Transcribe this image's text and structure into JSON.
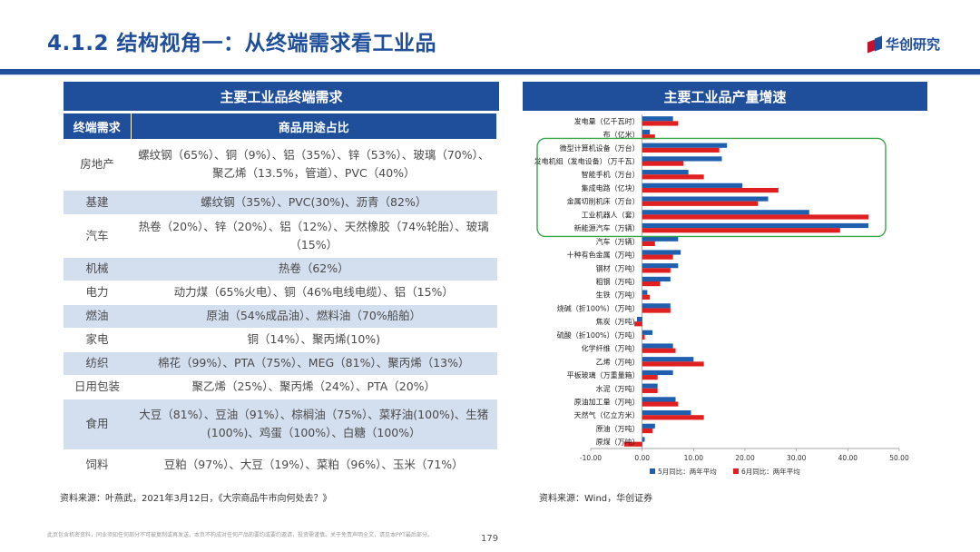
{
  "header": {
    "title": "4.1.2 结构视角一：从终端需求看工业品",
    "logo_text": "华创研究"
  },
  "table": {
    "title": "主要工业品终端需求",
    "col1": "终端需求",
    "col2": "商品用途占比",
    "rows": [
      {
        "k": "房地产",
        "v": "螺纹钢（65%）、铜（9%）、铝（35%）、锌（53%）、玻璃（70%）、聚乙烯（13.5%，管道）、PVC（40%）"
      },
      {
        "k": "基建",
        "v": "螺纹钢（35%）、PVC(30%)、沥青（82%）"
      },
      {
        "k": "汽车",
        "v": "热卷（20%）、锌（20%）、铝（12%）、天然橡胶（74%轮胎）、玻璃（15%）"
      },
      {
        "k": "机械",
        "v": "热卷（62%）"
      },
      {
        "k": "电力",
        "v": "动力煤（65%火电）、铜（46%电线电缆）、铝（15%）"
      },
      {
        "k": "燃油",
        "v": "原油（54%成品油）、燃料油（70%船舶）"
      },
      {
        "k": "家电",
        "v": "铜（14%）、聚丙烯(10%)"
      },
      {
        "k": "纺织",
        "v": "棉花（99%）、PTA（75%）、MEG（81%）、聚丙烯（13%）"
      },
      {
        "k": "日用包装",
        "v": "聚乙烯（25%）、聚丙烯（24%）、PTA（20%）"
      },
      {
        "k": "食用",
        "v": "大豆（81%）、豆油（91%）、棕榈油（75%）、菜籽油(100%)、生猪(100%)、鸡蛋（100%）、白糖（100%）"
      },
      {
        "k": "饲料",
        "v": "豆粕（97%）、大豆（19%）、菜粕（96%）、玉米（71%）"
      }
    ],
    "source": "资料来源：叶燕武，2021年3月12日，《大宗商品牛市向何处去？》"
  },
  "chart_panel": {
    "title": "主要工业品产量增速",
    "source": "资料来源：Wind，华创证券"
  },
  "chart_data": {
    "type": "bar",
    "orientation": "horizontal",
    "categories": [
      "发电量（亿千瓦时）",
      "布（亿米）",
      "微型计算机设备（万台）",
      "发电机组（发电设备）（万千瓦）",
      "智能手机（万台）",
      "集成电路（亿块）",
      "金属切削机床（万台）",
      "工业机器人（套）",
      "新能源汽车（万辆）",
      "汽车（万辆）",
      "十种有色金属（万吨）",
      "钢材（万吨）",
      "粗钢（万吨）",
      "生铁（万吨）",
      "烧碱（折100%）（万吨）",
      "焦炭（万吨）",
      "硫酸（折100%）（万吨）",
      "化学纤维（万吨）",
      "乙烯（万吨）",
      "平板玻璃（万重量箱）",
      "水泥（万吨）",
      "原油加工量（万吨）",
      "天然气（亿立方米）",
      "原油（万吨）",
      "原煤（万吨）"
    ],
    "series": [
      {
        "name": "5月同比：两年平均",
        "color": "#1f5fae",
        "values": [
          6.0,
          1.5,
          16.5,
          15.5,
          9.0,
          19.5,
          24.5,
          32.5,
          44.0,
          7.0,
          7.5,
          7.0,
          5.5,
          1.0,
          5.5,
          -1.0,
          2.0,
          6.0,
          10.0,
          6.0,
          3.0,
          6.5,
          9.5,
          2.5,
          0.5
        ]
      },
      {
        "name": "6月同比：两年平均",
        "color": "#e02020",
        "values": [
          7.0,
          2.5,
          15.0,
          8.0,
          12.0,
          26.5,
          22.5,
          44.0,
          38.5,
          2.5,
          6.0,
          5.5,
          3.5,
          1.5,
          5.5,
          -1.5,
          0.5,
          6.5,
          12.0,
          3.0,
          3.0,
          7.0,
          12.0,
          2.0,
          -3.5
        ]
      }
    ],
    "xlim": [
      -10,
      50
    ],
    "xticks": [
      "-10.00",
      "0.00",
      "10.00",
      "20.00",
      "30.00",
      "40.00",
      "50.00"
    ],
    "legend": "bottom"
  },
  "footer": {
    "disclaimer": "此页包含机密资料，同业须知任何部分不可被复制或再发送。本页不构成对任何产品的要约或要约邀请，投资需谨慎。关于免责声明全文，请见本PPT最后部分。",
    "page": "179"
  }
}
